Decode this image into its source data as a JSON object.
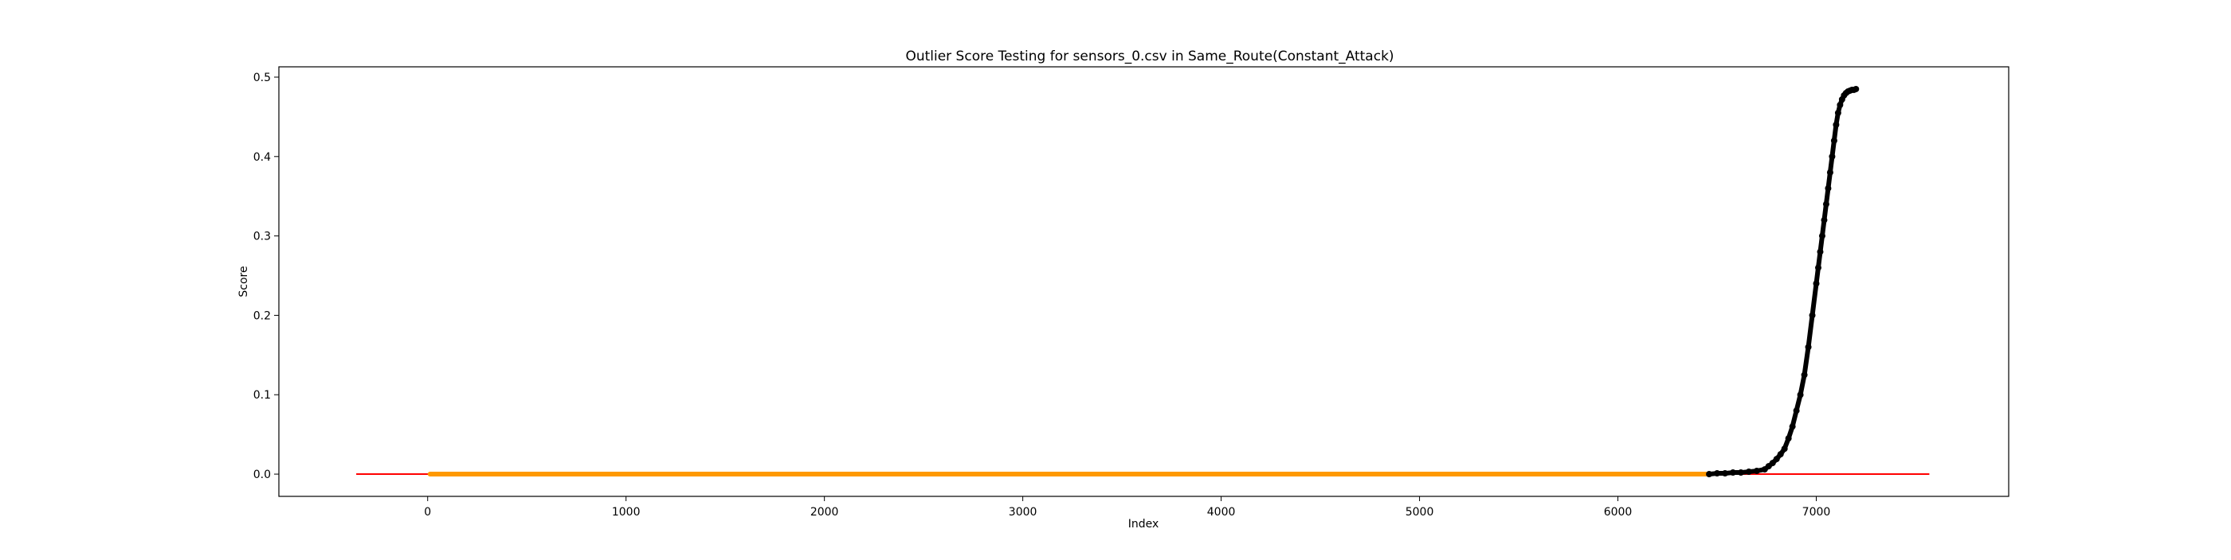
{
  "chart_data": {
    "type": "scatter",
    "title": "Outlier Score Testing for sensors_0.csv in Same_Route(Constant_Attack)",
    "xlabel": "Index",
    "ylabel": "Score",
    "xlim": [
      -750,
      7970
    ],
    "ylim": [
      -0.028,
      0.513
    ],
    "xticks": [
      0,
      1000,
      2000,
      3000,
      4000,
      5000,
      6000,
      7000
    ],
    "yticks": [
      0.0,
      0.1,
      0.2,
      0.3,
      0.4,
      0.5
    ],
    "xtick_labels": [
      "0",
      "1000",
      "2000",
      "3000",
      "4000",
      "5000",
      "6000",
      "7000"
    ],
    "ytick_labels": [
      "0.0",
      "0.1",
      "0.2",
      "0.3",
      "0.4",
      "0.5"
    ],
    "grid": false,
    "colors": {
      "threshold_line": "#ff0000",
      "normal_points": "#ff9900",
      "outlier_points": "#000000"
    },
    "series": [
      {
        "kind": "line",
        "x": [
          -360,
          7570
        ],
        "y": [
          0.0,
          0.0
        ]
      },
      {
        "kind": "band",
        "x_range": [
          0,
          6460
        ],
        "y": 0.0
      },
      {
        "kind": "points",
        "x": [
          6460,
          6500,
          6540,
          6580,
          6620,
          6660,
          6700,
          6740,
          6760,
          6780,
          6800,
          6820,
          6840,
          6860,
          6880,
          6900,
          6920,
          6940,
          6960,
          6980,
          7000,
          7010,
          7020,
          7030,
          7040,
          7050,
          7060,
          7070,
          7080,
          7090,
          7100,
          7110,
          7120,
          7130,
          7140,
          7150,
          7160,
          7170,
          7180,
          7190,
          7200
        ],
        "y": [
          0.0,
          0.001,
          0.001,
          0.002,
          0.002,
          0.003,
          0.004,
          0.006,
          0.01,
          0.014,
          0.019,
          0.025,
          0.032,
          0.045,
          0.06,
          0.08,
          0.1,
          0.125,
          0.16,
          0.2,
          0.24,
          0.26,
          0.28,
          0.3,
          0.32,
          0.34,
          0.36,
          0.38,
          0.4,
          0.42,
          0.44,
          0.455,
          0.465,
          0.472,
          0.477,
          0.48,
          0.482,
          0.483,
          0.484,
          0.484,
          0.485
        ]
      }
    ]
  }
}
